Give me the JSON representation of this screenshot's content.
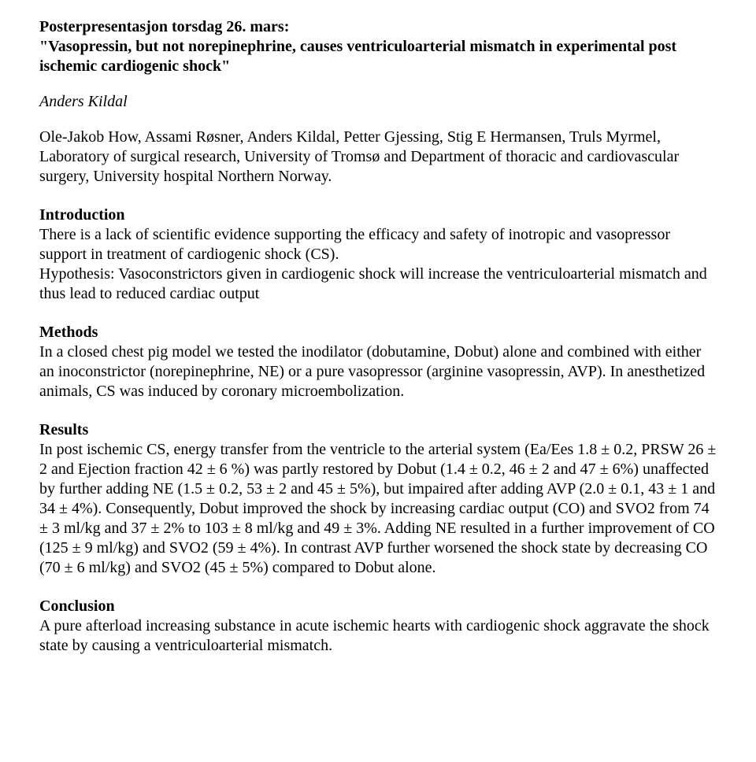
{
  "header": {
    "session": "Posterpresentasjon torsdag 26. mars:",
    "title": "\"Vasopressin, but not norepinephrine, causes ventriculoarterial mismatch in experimental post ischemic cardiogenic shock\""
  },
  "author": "Anders Kildal",
  "affiliation": "Ole-Jakob How, Assami Røsner, Anders Kildal, Petter Gjessing, Stig E Hermansen, Truls Myrmel, Laboratory of surgical research, University of Tromsø and Department of thoracic and cardiovascular surgery, University hospital Northern Norway.",
  "sections": {
    "introduction": {
      "heading": "Introduction",
      "body": " There is a lack of scientific evidence supporting the efficacy and safety of inotropic and vasopressor support in treatment of cardiogenic shock (CS).\nHypothesis: Vasoconstrictors given in cardiogenic shock will increase the ventriculoarterial mismatch and thus lead to reduced cardiac output"
    },
    "methods": {
      "heading": "Methods",
      "body": " In a closed chest pig model we tested the inodilator (dobutamine, Dobut) alone and combined with either an inoconstrictor (norepinephrine, NE) or a pure vasopressor (arginine vasopressin, AVP). In anesthetized animals, CS was induced by coronary microembolization."
    },
    "results": {
      "heading": "Results",
      "body": "In post ischemic CS, energy transfer from the ventricle to the arterial system (Ea/Ees 1.8 ± 0.2, PRSW 26 ± 2 and Ejection fraction 42 ± 6 %) was partly restored by Dobut (1.4 ± 0.2, 46 ± 2 and 47 ± 6%) unaffected by further adding NE (1.5 ± 0.2, 53 ± 2 and 45 ± 5%), but impaired after adding AVP (2.0 ± 0.1, 43 ± 1 and 34 ± 4%). Consequently, Dobut improved the shock by increasing cardiac output (CO) and SVO2 from 74 ± 3 ml/kg and 37 ± 2% to 103 ± 8 ml/kg and 49 ± 3%. Adding NE resulted in a further improvement of CO (125 ± 9 ml/kg) and SVO2 (59 ± 4%). In contrast AVP further worsened the shock state by decreasing CO (70 ± 6 ml/kg) and SVO2 (45 ± 5%) compared to Dobut alone."
    },
    "conclusion": {
      "heading": "Conclusion",
      "body": "A pure afterload increasing substance in acute ischemic hearts with cardiogenic shock aggravate the shock state by causing a ventriculoarterial mismatch."
    }
  },
  "style": {
    "font_family": "Times New Roman",
    "body_fontsize_pt": 15,
    "text_color": "#000000",
    "background_color": "#ffffff",
    "bold_weight": 700,
    "line_height": 1.25
  }
}
